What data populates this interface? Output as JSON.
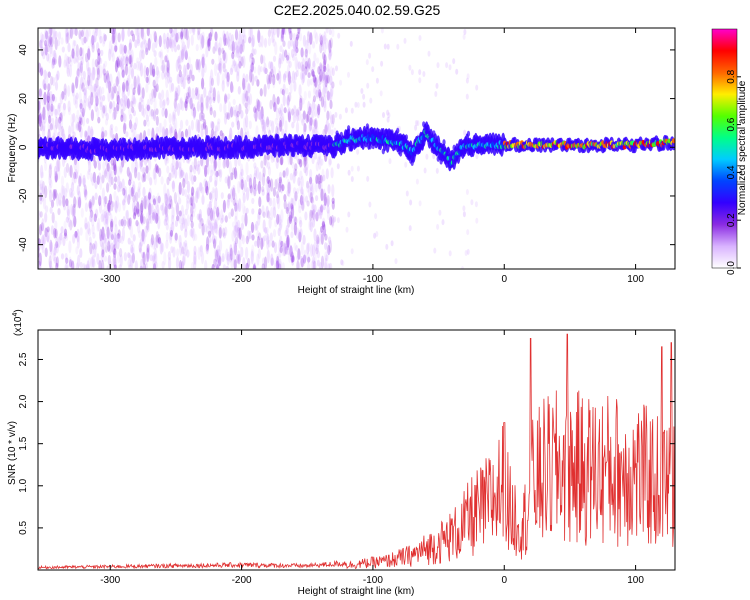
{
  "title": "C2E2.2025.040.02.59.G25",
  "colors": {
    "snr_line": "#e03030",
    "spectrum_low": "#b38cff",
    "spectrum_band": "#5500ff",
    "axis": "#000000"
  },
  "chart_data": [
    {
      "type": "heatmap",
      "title": "C2E2.2025.040.02.59.G25",
      "xlabel": "Height of straight line (km)",
      "ylabel": "Frequency (Hz)",
      "xlim": [
        -355,
        130
      ],
      "ylim": [
        -50,
        49
      ],
      "xticks": [
        -300,
        -200,
        -100,
        0,
        100
      ],
      "yticks": [
        -40,
        -20,
        0,
        20,
        40
      ],
      "colorbar": {
        "label": "Normalized spectral amplitude",
        "range": [
          0,
          1
        ],
        "ticks": [
          "0.0",
          "0.2",
          "0.4",
          "0.6",
          "0.8"
        ],
        "colormap": [
          "#ffffff",
          "#d9b3ff",
          "#8a2be2",
          "#3300ff",
          "#0044ff",
          "#00ccff",
          "#00ff88",
          "#55ff00",
          "#ffee00",
          "#ff6600",
          "#ff0000",
          "#ff00cc"
        ]
      },
      "band_trace": [
        {
          "x": -350,
          "y": 0
        },
        {
          "x": -300,
          "y": -1
        },
        {
          "x": -250,
          "y": 0
        },
        {
          "x": -200,
          "y": 0
        },
        {
          "x": -160,
          "y": 1
        },
        {
          "x": -130,
          "y": 0
        },
        {
          "x": -120,
          "y": 3
        },
        {
          "x": -100,
          "y": 4
        },
        {
          "x": -80,
          "y": 2
        },
        {
          "x": -70,
          "y": -2
        },
        {
          "x": -60,
          "y": 6
        },
        {
          "x": -50,
          "y": 0
        },
        {
          "x": -40,
          "y": -6
        },
        {
          "x": -30,
          "y": 1
        },
        {
          "x": 0,
          "y": 1
        },
        {
          "x": 50,
          "y": 1
        },
        {
          "x": 100,
          "y": 1
        },
        {
          "x": 130,
          "y": 2
        }
      ],
      "noisy_region_xlim": [
        -355,
        -130
      ]
    },
    {
      "type": "line",
      "xlabel": "Height of straight line (km)",
      "ylabel": "SNR (10 * v/v)",
      "scale_note": "(x10^4)",
      "xlim": [
        -355,
        130
      ],
      "ylim": [
        0,
        2.85
      ],
      "xticks": [
        -300,
        -200,
        -100,
        0,
        100
      ],
      "yticks": [
        0.5,
        1.0,
        1.5,
        2.0,
        2.5
      ],
      "envelope": [
        {
          "x": -355,
          "y": 0.03
        },
        {
          "x": -250,
          "y": 0.05
        },
        {
          "x": -200,
          "y": 0.06
        },
        {
          "x": -150,
          "y": 0.05
        },
        {
          "x": -120,
          "y": 0.08
        },
        {
          "x": -90,
          "y": 0.15
        },
        {
          "x": -70,
          "y": 0.25
        },
        {
          "x": -50,
          "y": 0.45
        },
        {
          "x": -35,
          "y": 0.65
        },
        {
          "x": -25,
          "y": 0.9
        },
        {
          "x": -15,
          "y": 1.05
        },
        {
          "x": -5,
          "y": 1.3
        },
        {
          "x": 0,
          "y": 1.45
        },
        {
          "x": 5,
          "y": 0.95
        },
        {
          "x": 15,
          "y": 0.8
        },
        {
          "x": 20,
          "y": 1.4
        },
        {
          "x": 30,
          "y": 1.65
        },
        {
          "x": 45,
          "y": 1.75
        },
        {
          "x": 60,
          "y": 1.7
        },
        {
          "x": 80,
          "y": 1.7
        },
        {
          "x": 100,
          "y": 1.65
        },
        {
          "x": 115,
          "y": 1.5
        },
        {
          "x": 130,
          "y": 1.4
        }
      ],
      "peaks": [
        {
          "x": 20,
          "y": 2.75
        },
        {
          "x": 48,
          "y": 2.8
        },
        {
          "x": 0,
          "y": 1.75
        },
        {
          "x": 120,
          "y": 2.65
        },
        {
          "x": 127,
          "y": 2.7
        }
      ]
    }
  ]
}
